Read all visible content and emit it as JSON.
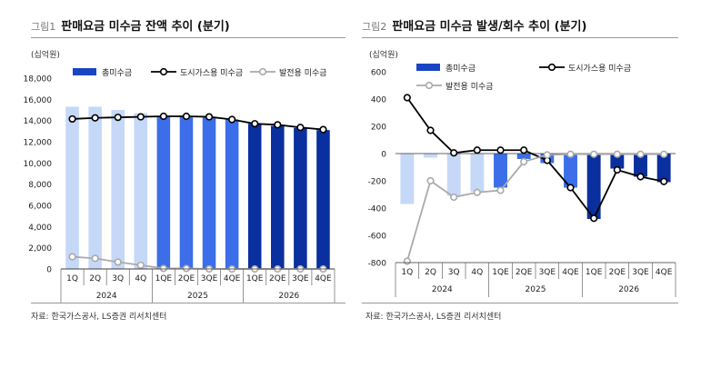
{
  "left": {
    "fig_no": "그림1",
    "title": "판매요금 미수금 잔액 추이 (분기)",
    "unit": "(십억원)",
    "source": "자료: 한국가스공사, LS증권 리서치센터",
    "chart_data": {
      "type": "bar",
      "categories": [
        "1Q",
        "2Q",
        "3Q",
        "4Q",
        "1QE",
        "2QE",
        "3QE",
        "4QE",
        "1QE",
        "2QE",
        "3QE",
        "4QE"
      ],
      "year_groups": [
        {
          "label": "2024",
          "span": 4
        },
        {
          "label": "2025",
          "span": 4
        },
        {
          "label": "2026",
          "span": 4
        }
      ],
      "ylim": [
        0,
        18000
      ],
      "yticks": [
        0,
        2000,
        4000,
        6000,
        8000,
        10000,
        12000,
        14000,
        16000,
        18000
      ],
      "ytick_labels": [
        "0",
        "2,000",
        "4,000",
        "6,000",
        "8,000",
        "10,000",
        "12,000",
        "14,000",
        "16,000",
        "18,000"
      ],
      "bar_colors": [
        "#c5d8f7",
        "#c5d8f7",
        "#c5d8f7",
        "#c5d8f7",
        "#3b6ee8",
        "#3b6ee8",
        "#3b6ee8",
        "#3b6ee8",
        "#0a2f9e",
        "#0a2f9e",
        "#0a2f9e",
        "#0a2f9e"
      ],
      "series": [
        {
          "name": "총미수금",
          "kind": "bar",
          "legend_color": "#1a45c2",
          "values": [
            15300,
            15300,
            15000,
            14700,
            14400,
            14400,
            14300,
            14100,
            13700,
            13500,
            13300,
            13100
          ]
        },
        {
          "name": "도시가스용 미수금",
          "kind": "line",
          "color": "#000000",
          "values": [
            14150,
            14250,
            14300,
            14350,
            14400,
            14400,
            14350,
            14100,
            13700,
            13600,
            13350,
            13150
          ]
        },
        {
          "name": "발전용 미수금",
          "kind": "line",
          "color": "#aaaaaa",
          "values": [
            1150,
            1000,
            650,
            350,
            50,
            50,
            0,
            0,
            0,
            0,
            0,
            0
          ]
        }
      ]
    }
  },
  "right": {
    "fig_no": "그림2",
    "title": "판매요금 미수금 발생/회수 추이 (분기)",
    "unit": "(십억원)",
    "source": "자료: 한국가스공사, LS증권 리서치센터",
    "chart_data": {
      "type": "bar",
      "categories": [
        "1Q",
        "2Q",
        "3Q",
        "4Q",
        "1QE",
        "2QE",
        "3QE",
        "4QE",
        "1QE",
        "2QE",
        "3QE",
        "4QE"
      ],
      "year_groups": [
        {
          "label": "2024",
          "span": 4
        },
        {
          "label": "2025",
          "span": 4
        },
        {
          "label": "2026",
          "span": 4
        }
      ],
      "ylim": [
        -800,
        600
      ],
      "yticks": [
        -800,
        -600,
        -400,
        -200,
        0,
        200,
        400,
        600
      ],
      "ytick_labels": [
        "-800",
        "-600",
        "-400",
        "-200",
        "0",
        "200",
        "400",
        "600"
      ],
      "bar_colors": [
        "#c5d8f7",
        "#c5d8f7",
        "#c5d8f7",
        "#c5d8f7",
        "#3b6ee8",
        "#3b6ee8",
        "#3b6ee8",
        "#3b6ee8",
        "#0a2f9e",
        "#0a2f9e",
        "#0a2f9e",
        "#0a2f9e"
      ],
      "series": [
        {
          "name": "총미수금",
          "kind": "bar",
          "legend_color": "#1a45c2",
          "values": [
            -370,
            -30,
            -310,
            -280,
            -250,
            -40,
            -70,
            -250,
            -480,
            -110,
            -170,
            -210
          ]
        },
        {
          "name": "도시가스용 미수금",
          "kind": "line",
          "color": "#000000",
          "values": [
            410,
            170,
            5,
            25,
            25,
            25,
            -50,
            -250,
            -475,
            -120,
            -170,
            -205
          ]
        },
        {
          "name": "발전용 미수금",
          "kind": "line",
          "color": "#aaaaaa",
          "values": [
            -790,
            -200,
            -320,
            -285,
            -270,
            -60,
            -10,
            -5,
            -5,
            -5,
            -5,
            -5
          ]
        }
      ]
    }
  }
}
